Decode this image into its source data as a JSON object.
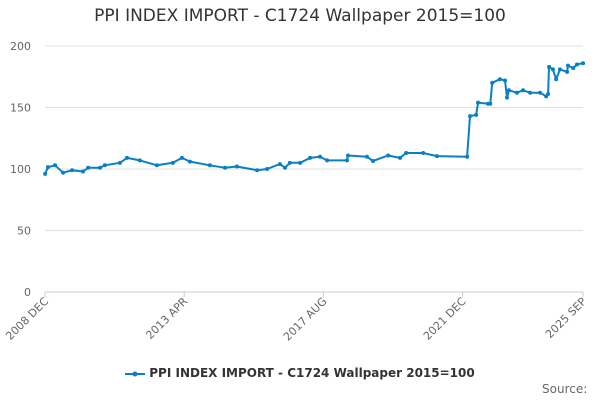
{
  "chart_data": {
    "type": "line",
    "title": "PPI INDEX IMPORT - C1724 Wallpaper 2015=100",
    "xlabel": "",
    "ylabel": "",
    "ylim": [
      0,
      200
    ],
    "xlim": [
      2008.917,
      2025.667
    ],
    "y_ticks": [
      0,
      50,
      100,
      150,
      200
    ],
    "x_ticks": [
      {
        "label": "2008 DEC",
        "value": 2008.917
      },
      {
        "label": "2013 APR",
        "value": 2013.25
      },
      {
        "label": "2017 AUG",
        "value": 2017.583
      },
      {
        "label": "2021 DEC",
        "value": 2021.917
      },
      {
        "label": "2025 SEP",
        "value": 2025.667
      }
    ],
    "grid": true,
    "legend_position": "bottom",
    "series": [
      {
        "name": "PPI INDEX IMPORT - C1724 Wallpaper 2015=100",
        "color": "#0a7fc2",
        "x": [
          2008.92,
          2009.01,
          2009.23,
          2009.48,
          2009.76,
          2010.1,
          2010.26,
          2010.63,
          2010.78,
          2011.25,
          2011.47,
          2011.87,
          2012.4,
          2012.9,
          2013.18,
          2013.43,
          2014.05,
          2014.52,
          2014.89,
          2015.52,
          2015.83,
          2016.23,
          2016.39,
          2016.54,
          2016.86,
          2017.17,
          2017.48,
          2017.7,
          2018.32,
          2018.35,
          2018.94,
          2019.13,
          2019.6,
          2019.97,
          2020.16,
          2020.69,
          2021.12,
          2022.06,
          2022.15,
          2022.34,
          2022.4,
          2022.71,
          2022.78,
          2022.84,
          2023.08,
          2023.24,
          2023.3,
          2023.36,
          2023.61,
          2023.8,
          2024.02,
          2024.33,
          2024.52,
          2024.58,
          2024.61,
          2024.73,
          2024.83,
          2024.95,
          2025.17,
          2025.2,
          2025.36,
          2025.48,
          2025.67
        ],
        "y": [
          96,
          101.5,
          103,
          97,
          99,
          98,
          101,
          101,
          103,
          105,
          109,
          107,
          103,
          105,
          109,
          106,
          103,
          101,
          102,
          99,
          100,
          104,
          101,
          105,
          105,
          109,
          110,
          107,
          107,
          111,
          110,
          106.5,
          111,
          109,
          113,
          113,
          110.5,
          110,
          143,
          144,
          154,
          153,
          153,
          170,
          173,
          172,
          158,
          164,
          162,
          164,
          162,
          162,
          159,
          161,
          183,
          181,
          173,
          181,
          179,
          184,
          182,
          185,
          186
        ]
      }
    ]
  },
  "footer": {
    "source": "Source:"
  }
}
